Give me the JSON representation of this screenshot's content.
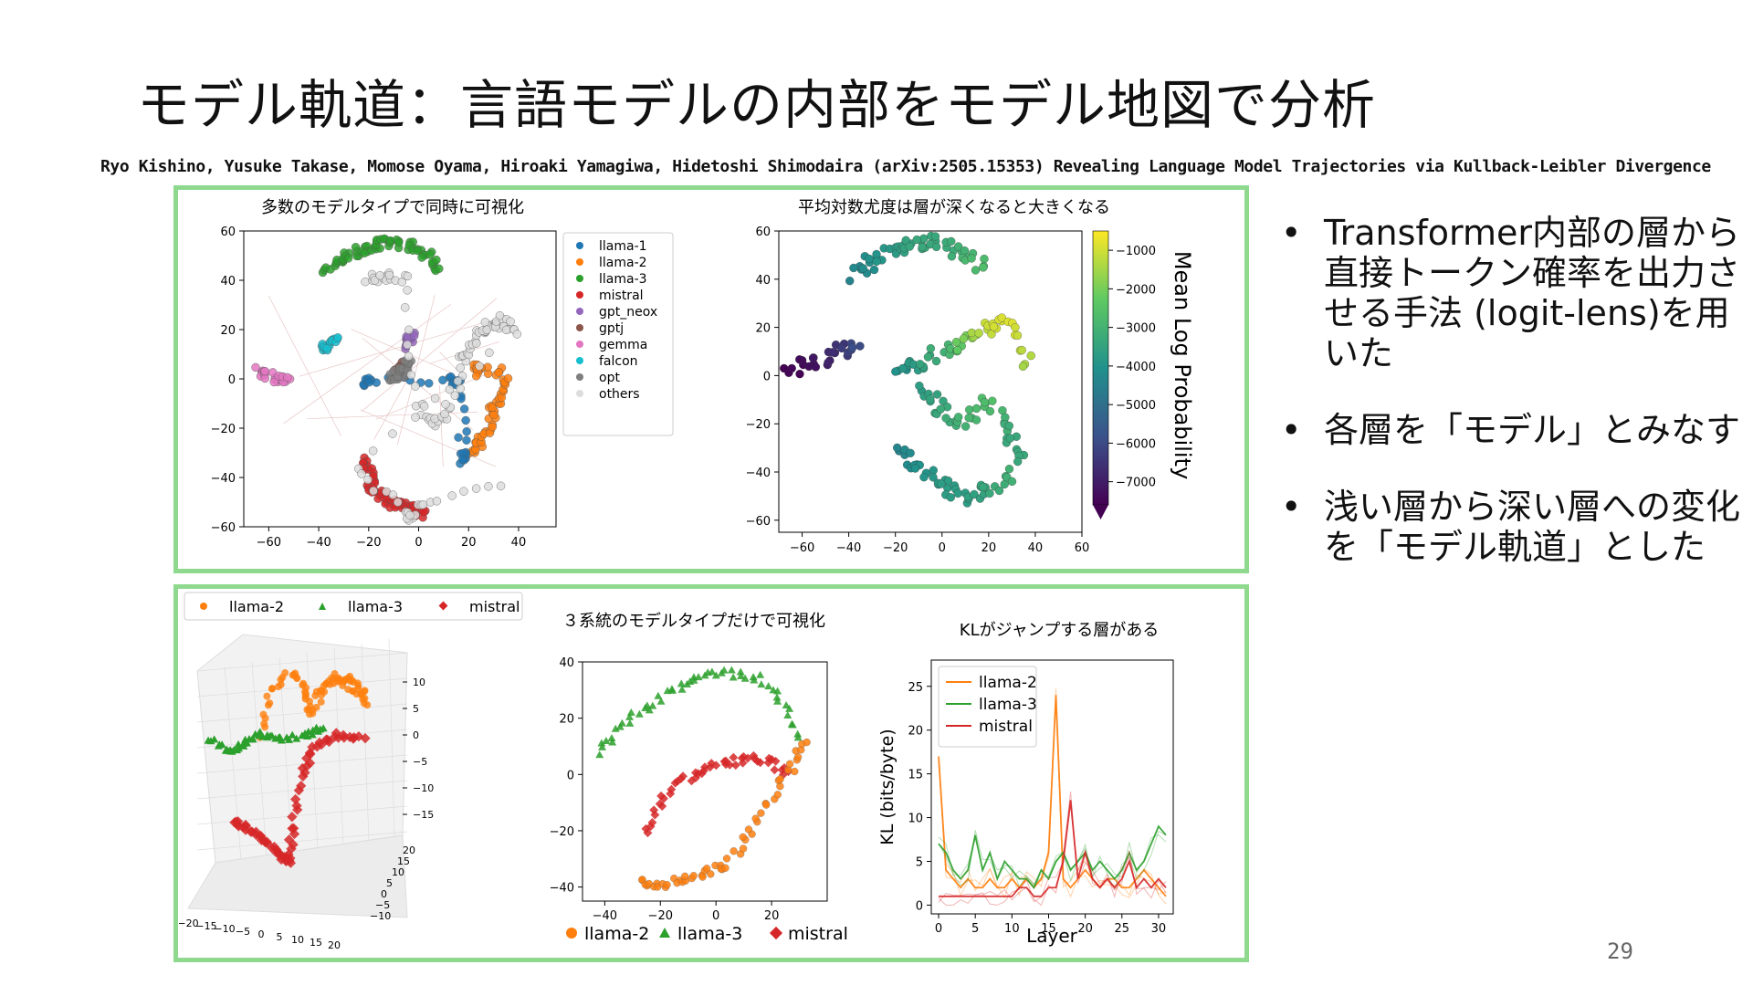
{
  "slide": {
    "title": "モデル軌道：言語モデルの内部をモデル地図で分析",
    "citation": "Ryo Kishino, Yusuke Takase, Momose Oyama, Hiroaki Yamagiwa, Hidetoshi Shimodaira (arXiv:2505.15353) Revealing Language Model Trajectories via Kullback-Leibler Divergence",
    "page_number": "29"
  },
  "bullets": [
    {
      "dot": "•",
      "text": "Transformer内部の層から直接トークン確率を出力させる手法 (logit-lens)を用いた"
    },
    {
      "dot": "•",
      "text": "各層を「モデル」とみなす"
    },
    {
      "dot": "•",
      "text": "浅い層から深い層への変化を「モデル軌道」とした"
    }
  ],
  "colors": {
    "box_border": "#8fd98f",
    "llama1": "#1f77b4",
    "llama2": "#ff7f0e",
    "llama3": "#2ca02c",
    "mistral": "#d62728",
    "gpt_neox": "#9467bd",
    "gptj": "#8c564b",
    "gemma": "#e377c2",
    "falcon": "#17becf",
    "opt": "#7f7f7f",
    "others": "#dddddd"
  },
  "chart_data": [
    {
      "type": "scatter",
      "title": "多数のモデルタイプで同時に可視化",
      "x_ticks": [
        "−60",
        "−40",
        "−20",
        "0",
        "20",
        "40"
      ],
      "y_ticks": [
        "60",
        "40",
        "20",
        "0",
        "−20",
        "−40",
        "−60"
      ],
      "xlim": [
        -70,
        55
      ],
      "ylim": [
        -60,
        60
      ],
      "legend": [
        "llama-1",
        "llama-2",
        "llama-3",
        "mistral",
        "gpt_neox",
        "gptj",
        "gemma",
        "falcon",
        "opt",
        "others"
      ],
      "series": [
        {
          "name": "llama-3",
          "x": [
            -38,
            -32,
            -26,
            -20,
            -14,
            -8,
            -2,
            4,
            8
          ],
          "y": [
            44,
            48,
            51,
            53,
            55,
            55,
            53,
            49,
            44
          ]
        },
        {
          "name": "mistral",
          "x": [
            -22,
            -20,
            -18,
            -14,
            -10,
            -6,
            -2,
            2
          ],
          "y": [
            -32,
            -38,
            -44,
            -48,
            -50,
            -52,
            -54,
            -55
          ]
        },
        {
          "name": "llama-2",
          "x": [
            20,
            24,
            28,
            30,
            32,
            34,
            24,
            22
          ],
          "y": [
            -30,
            -26,
            -20,
            -12,
            -6,
            2,
            6,
            0
          ]
        },
        {
          "name": "gemma",
          "x": [
            -64,
            -60,
            -56,
            -52
          ],
          "y": [
            4,
            2,
            0,
            -1
          ]
        },
        {
          "name": "falcon",
          "x": [
            -40,
            -36,
            -32
          ],
          "y": [
            12,
            14,
            16
          ]
        },
        {
          "name": "llama-1",
          "x": [
            -22,
            -20,
            14,
            16,
            18,
            17
          ],
          "y": [
            -2,
            0,
            0,
            -2,
            -30,
            -34
          ]
        },
        {
          "name": "gpt_neox",
          "x": [
            -6,
            -4,
            -2
          ],
          "y": [
            14,
            16,
            18
          ]
        },
        {
          "name": "gptj",
          "x": [
            -8,
            -6
          ],
          "y": [
            4,
            6
          ]
        },
        {
          "name": "opt",
          "x": [
            -10,
            -8,
            -6,
            -4
          ],
          "y": [
            0,
            2,
            4,
            6
          ]
        },
        {
          "name": "others",
          "x": [
            -20,
            -14,
            -6,
            0,
            6,
            12,
            18,
            22,
            26,
            30,
            34,
            38,
            -24,
            -4,
            0,
            36
          ],
          "y": [
            40,
            42,
            41,
            -10,
            -20,
            -12,
            8,
            14,
            20,
            22,
            24,
            18,
            -36,
            -56,
            -52,
            -40
          ]
        }
      ]
    },
    {
      "type": "scatter",
      "title": "平均対数尤度は層が深くなると大きくなる",
      "x_ticks": [
        "−60",
        "−40",
        "−20",
        "0",
        "20",
        "40",
        "60"
      ],
      "y_ticks": [
        "60",
        "40",
        "20",
        "0",
        "−20",
        "−40",
        "−60"
      ],
      "xlim": [
        -70,
        60
      ],
      "ylim": [
        -65,
        60
      ],
      "colorbar_label": "Mean Log Probability",
      "colorbar_ticks": [
        "−1000",
        "−2000",
        "−3000",
        "−4000",
        "−5000",
        "−6000",
        "−7000"
      ],
      "colorbar_range": [
        -7600,
        -500
      ]
    },
    {
      "type": "scatter",
      "title": "",
      "subtype": "3d",
      "legend": [
        "llama-2",
        "llama-3",
        "mistral"
      ],
      "z_ticks": [
        "10",
        "5",
        "0",
        "−5",
        "−10",
        "−15"
      ],
      "x_ticks": [
        "−20",
        "−15",
        "−10",
        "−5",
        "0",
        "5",
        "10",
        "15",
        "20"
      ],
      "y_ticks": [
        "20",
        "15",
        "10",
        "5",
        "0",
        "−5",
        "−10"
      ]
    },
    {
      "type": "scatter",
      "title": "３系統のモデルタイプだけで可視化",
      "x_ticks": [
        "−40",
        "−20",
        "0",
        "20"
      ],
      "y_ticks": [
        "40",
        "20",
        "0",
        "−20",
        "−40"
      ],
      "xlim": [
        -48,
        40
      ],
      "ylim": [
        -45,
        40
      ],
      "legend": [
        "llama-2",
        "llama-3",
        "mistral"
      ]
    },
    {
      "type": "line",
      "title": "KLがジャンプする層がある",
      "xlabel": "Layer",
      "ylabel": "KL (bits/byte)",
      "x_ticks": [
        "0",
        "5",
        "10",
        "15",
        "20",
        "25",
        "30"
      ],
      "y_ticks": [
        "25",
        "20",
        "15",
        "10",
        "5",
        "0"
      ],
      "xlim": [
        -1,
        32
      ],
      "ylim": [
        -1,
        28
      ],
      "series": [
        {
          "name": "llama-2",
          "x": [
            0,
            1,
            2,
            3,
            4,
            5,
            6,
            7,
            8,
            9,
            10,
            11,
            12,
            13,
            14,
            15,
            16,
            17,
            18,
            19,
            20,
            21,
            22,
            23,
            24,
            25,
            26,
            27,
            28,
            29,
            30,
            31
          ],
          "y": [
            17,
            4,
            3,
            2,
            3,
            2,
            2,
            3,
            2,
            2,
            3,
            2,
            3,
            2,
            3,
            6,
            24,
            3,
            2,
            3,
            4,
            3,
            2,
            3,
            3,
            2,
            2,
            3,
            4,
            3,
            2,
            1
          ]
        },
        {
          "name": "llama-3",
          "x": [
            0,
            1,
            2,
            3,
            4,
            5,
            6,
            7,
            8,
            9,
            10,
            11,
            12,
            13,
            14,
            15,
            16,
            17,
            18,
            19,
            20,
            21,
            22,
            23,
            24,
            25,
            26,
            27,
            28,
            29,
            30,
            31
          ],
          "y": [
            7,
            6,
            4,
            3,
            4,
            8,
            4,
            6,
            3,
            5,
            4,
            3,
            3,
            2,
            4,
            3,
            5,
            6,
            4,
            5,
            6,
            4,
            5,
            4,
            3,
            4,
            6,
            4,
            5,
            7,
            9,
            8
          ]
        },
        {
          "name": "mistral",
          "x": [
            0,
            1,
            2,
            3,
            4,
            5,
            6,
            7,
            8,
            9,
            10,
            11,
            12,
            13,
            14,
            15,
            16,
            17,
            18,
            19,
            20,
            21,
            22,
            23,
            24,
            25,
            26,
            27,
            28,
            29,
            30,
            31
          ],
          "y": [
            1,
            1,
            1,
            1,
            1,
            1,
            1,
            1,
            1,
            1,
            1,
            2,
            2,
            1,
            1,
            2,
            2,
            5,
            12,
            3,
            6,
            3,
            2,
            3,
            2,
            3,
            5,
            2,
            3,
            2,
            3,
            2
          ]
        }
      ]
    }
  ],
  "legend_row": {
    "llama2": "llama-2",
    "llama3": "llama-3",
    "mistral": "mistral"
  }
}
